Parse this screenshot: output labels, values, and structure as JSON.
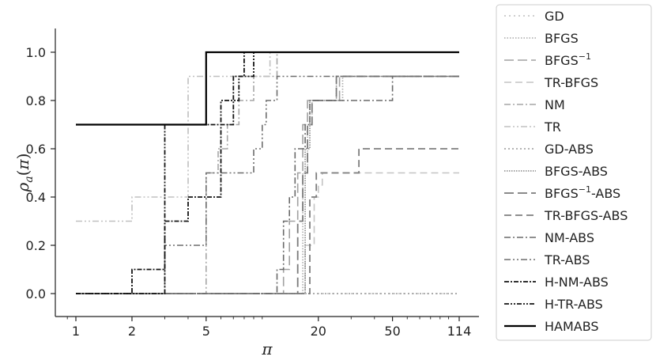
{
  "chart_data": {
    "type": "line",
    "xlabel": "π",
    "ylabel": "ρa(π)",
    "xscale": "log",
    "xlim": [
      1,
      114
    ],
    "ylim": [
      0,
      1
    ],
    "x_ticks": [
      1,
      2,
      5,
      20,
      50,
      114
    ],
    "x_tick_labels": [
      "1",
      "2",
      "5",
      "20",
      "50",
      "114"
    ],
    "y_ticks": [
      0,
      0.2,
      0.4,
      0.6,
      0.8,
      1
    ],
    "y_tick_labels": [
      "0.0",
      "0.2",
      "0.4",
      "0.6",
      "0.8",
      "1.0"
    ],
    "grid": false,
    "legend_position": "outside-right",
    "series": [
      {
        "name": "GD",
        "label_html": "GD",
        "color": "#bdbdbd",
        "dash": "2,4",
        "width": 1.6,
        "points": [
          [
            1,
            0
          ],
          [
            17,
            0
          ],
          [
            114,
            0
          ]
        ]
      },
      {
        "name": "BFGS",
        "label_html": "BFGS",
        "color": "#a8a8a8",
        "dash": "1.5,2",
        "width": 1.6,
        "points": [
          [
            1,
            0
          ],
          [
            16.5,
            0
          ],
          [
            16.5,
            0.5
          ],
          [
            17.5,
            0.5
          ],
          [
            17.5,
            0.7
          ],
          [
            18.5,
            0.7
          ],
          [
            18.5,
            0.8
          ],
          [
            27,
            0.8
          ],
          [
            27,
            0.9
          ],
          [
            114,
            0.9
          ]
        ]
      },
      {
        "name": "BFGS^-1",
        "label": "BFGS",
        "sup": "−1",
        "color": "#a0a0a0",
        "dash": "12,5",
        "width": 1.6,
        "points": [
          [
            1,
            0
          ],
          [
            13,
            0
          ],
          [
            13,
            0.1
          ],
          [
            14,
            0.1
          ],
          [
            14,
            0.3
          ],
          [
            15.5,
            0.3
          ],
          [
            15.5,
            0.5
          ],
          [
            16.5,
            0.5
          ],
          [
            16.5,
            0.7
          ],
          [
            17.5,
            0.7
          ],
          [
            17.5,
            0.8
          ],
          [
            26,
            0.8
          ],
          [
            26,
            0.9
          ],
          [
            114,
            0.9
          ]
        ]
      },
      {
        "name": "TR-BFGS",
        "label_html": "TR-BFGS",
        "color": "#c4c4c4",
        "dash": "9,5",
        "width": 1.6,
        "points": [
          [
            1,
            0
          ],
          [
            17,
            0
          ],
          [
            17,
            0.2
          ],
          [
            19,
            0.2
          ],
          [
            19,
            0.4
          ],
          [
            20,
            0.4
          ],
          [
            20,
            0.45
          ],
          [
            21,
            0.45
          ],
          [
            21,
            0.5
          ],
          [
            114,
            0.5
          ]
        ]
      },
      {
        "name": "NM",
        "label_html": "NM",
        "color": "#a6a6a6",
        "dash": "8,3,2,3",
        "width": 1.6,
        "points": [
          [
            1,
            0
          ],
          [
            5,
            0
          ],
          [
            5,
            0.5
          ],
          [
            5.8,
            0.5
          ],
          [
            5.8,
            0.6
          ],
          [
            6.5,
            0.6
          ],
          [
            6.5,
            0.7
          ],
          [
            7.5,
            0.7
          ],
          [
            7.5,
            0.8
          ],
          [
            9,
            0.8
          ],
          [
            9,
            0.9
          ],
          [
            12,
            0.9
          ],
          [
            12,
            1
          ],
          [
            114,
            1
          ]
        ]
      },
      {
        "name": "TR",
        "label_html": "TR",
        "color": "#c0c0c0",
        "dash": "8,3,2,3,2,3",
        "width": 1.6,
        "points": [
          [
            1,
            0.3
          ],
          [
            2,
            0.3
          ],
          [
            2,
            0.4
          ],
          [
            3,
            0.4
          ],
          [
            3,
            0.4
          ],
          [
            4,
            0.4
          ],
          [
            4,
            0.9
          ],
          [
            11,
            0.9
          ],
          [
            11,
            1
          ],
          [
            114,
            1
          ]
        ]
      },
      {
        "name": "GD-ABS",
        "label_html": "GD-ABS",
        "color": "#9a9a9a",
        "dash": "2,3",
        "width": 1.6,
        "points": [
          [
            1,
            0
          ],
          [
            17,
            0
          ],
          [
            114,
            0
          ]
        ]
      },
      {
        "name": "BFGS-ABS",
        "label_html": "BFGS-ABS",
        "color": "#858585",
        "dash": "1.5,1.5",
        "width": 1.6,
        "points": [
          [
            1,
            0
          ],
          [
            17,
            0
          ],
          [
            17,
            0.6
          ],
          [
            18,
            0.6
          ],
          [
            18,
            0.8
          ],
          [
            20,
            0.8
          ],
          [
            20,
            0.8
          ],
          [
            25,
            0.8
          ],
          [
            25,
            0.9
          ],
          [
            114,
            0.9
          ]
        ]
      },
      {
        "name": "BFGS^-1-ABS",
        "label": "BFGS",
        "sup": "−1",
        "label_suffix": "-ABS",
        "color": "#7a7a7a",
        "dash": "12,5",
        "width": 1.8,
        "points": [
          [
            1,
            0
          ],
          [
            15.5,
            0
          ],
          [
            15.5,
            0.3
          ],
          [
            16.5,
            0.3
          ],
          [
            16.5,
            0.5
          ],
          [
            17.5,
            0.5
          ],
          [
            17.5,
            0.7
          ],
          [
            18.5,
            0.7
          ],
          [
            18.5,
            0.8
          ],
          [
            25,
            0.8
          ],
          [
            25,
            0.9
          ],
          [
            114,
            0.9
          ]
        ]
      },
      {
        "name": "TR-BFGS-ABS",
        "label_html": "TR-BFGS-ABS",
        "color": "#7e7e7e",
        "dash": "9,5",
        "width": 1.8,
        "points": [
          [
            1,
            0
          ],
          [
            18,
            0
          ],
          [
            18,
            0.4
          ],
          [
            19.5,
            0.4
          ],
          [
            19.5,
            0.5
          ],
          [
            33,
            0.5
          ],
          [
            33,
            0.6
          ],
          [
            114,
            0.6
          ]
        ]
      },
      {
        "name": "NM-ABS",
        "label_html": "NM-ABS",
        "color": "#6a6a6a",
        "dash": "8,3,2,3",
        "width": 1.6,
        "points": [
          [
            1,
            0
          ],
          [
            12,
            0
          ],
          [
            12,
            0.1
          ],
          [
            13,
            0.1
          ],
          [
            13,
            0.3
          ],
          [
            14,
            0.3
          ],
          [
            14,
            0.4
          ],
          [
            15,
            0.4
          ],
          [
            15,
            0.6
          ],
          [
            17,
            0.6
          ],
          [
            17,
            0.7
          ],
          [
            18,
            0.7
          ],
          [
            18,
            0.8
          ],
          [
            26,
            0.8
          ],
          [
            26,
            0.8
          ],
          [
            50,
            0.8
          ],
          [
            50,
            0.9
          ],
          [
            114,
            0.9
          ]
        ]
      },
      {
        "name": "TR-ABS",
        "label_html": "TR-ABS",
        "color": "#6e6e6e",
        "dash": "8,3,2,3,2,3",
        "width": 1.6,
        "points": [
          [
            1,
            0
          ],
          [
            3,
            0
          ],
          [
            3,
            0.2
          ],
          [
            5,
            0.2
          ],
          [
            5,
            0.5
          ],
          [
            8,
            0.5
          ],
          [
            8,
            0.5
          ],
          [
            9,
            0.5
          ],
          [
            9,
            0.6
          ],
          [
            10,
            0.6
          ],
          [
            10,
            0.7
          ],
          [
            10.5,
            0.7
          ],
          [
            10.5,
            0.8
          ],
          [
            12,
            0.8
          ],
          [
            12,
            0.9
          ],
          [
            114,
            0.9
          ]
        ]
      },
      {
        "name": "H-NM-ABS",
        "label_html": "H-NM-ABS",
        "color": "#141414",
        "dash": "6,2,2,2",
        "width": 1.8,
        "points": [
          [
            1,
            0
          ],
          [
            2,
            0
          ],
          [
            2,
            0.1
          ],
          [
            3,
            0.1
          ],
          [
            3,
            0.3
          ],
          [
            4,
            0.3
          ],
          [
            4,
            0.4
          ],
          [
            6,
            0.4
          ],
          [
            6,
            0.7
          ],
          [
            7,
            0.7
          ],
          [
            7,
            0.9
          ],
          [
            8,
            0.9
          ],
          [
            8,
            1
          ],
          [
            114,
            1
          ]
        ]
      },
      {
        "name": "H-TR-ABS",
        "label_html": "H-TR-ABS",
        "color": "#141414",
        "dash": "6,2,2,2,2,2",
        "width": 1.8,
        "points": [
          [
            1,
            0
          ],
          [
            3,
            0
          ],
          [
            3,
            0.7
          ],
          [
            5,
            0.7
          ],
          [
            5,
            0.7
          ],
          [
            6,
            0.7
          ],
          [
            6,
            0.8
          ],
          [
            7.5,
            0.8
          ],
          [
            7.5,
            0.9
          ],
          [
            9,
            0.9
          ],
          [
            9,
            1
          ],
          [
            114,
            1
          ]
        ]
      },
      {
        "name": "HAMABS",
        "label_html": "HAMABS",
        "color": "#000000",
        "dash": "",
        "width": 2.2,
        "points": [
          [
            1,
            0.7
          ],
          [
            5,
            0.7
          ],
          [
            5,
            1
          ],
          [
            114,
            1
          ]
        ]
      }
    ]
  }
}
